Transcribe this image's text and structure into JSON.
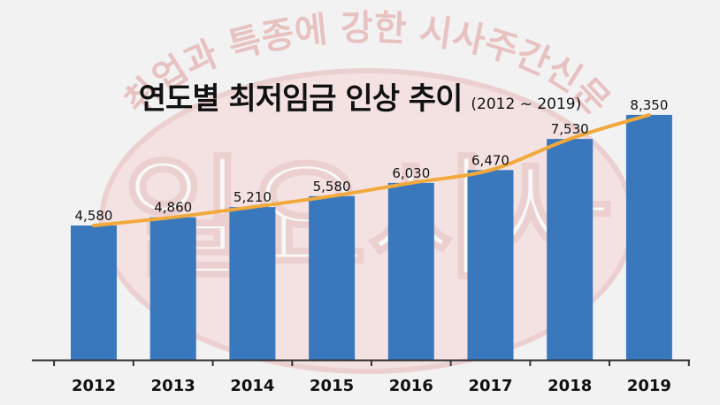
{
  "chart_data": {
    "type": "bar",
    "title": "연도별 최저임금 인상 추이",
    "subtitle": "(2012 ~ 2019)",
    "categories": [
      "2012",
      "2013",
      "2014",
      "2015",
      "2016",
      "2017",
      "2018",
      "2019"
    ],
    "values": [
      4580,
      4860,
      5210,
      5580,
      6030,
      6470,
      7530,
      8350
    ],
    "value_labels": [
      "4,580",
      "4,860",
      "5,210",
      "5,580",
      "6,030",
      "6,470",
      "7,530",
      "8,350"
    ],
    "xlabel": "",
    "ylabel": "",
    "ylim": [
      0,
      9400
    ],
    "grid": false,
    "legend": "none",
    "overlay": "trend line connecting bar values",
    "colors": {
      "bar": "#3a78bd",
      "line": "#f2a93b",
      "axis": "#333333",
      "background": "#f2f2f2",
      "watermark": "#e4a9a9"
    }
  },
  "watermark": {
    "arc_text": "취업과 특종에 강한 시사주간신문",
    "center_text": "일요시사"
  }
}
